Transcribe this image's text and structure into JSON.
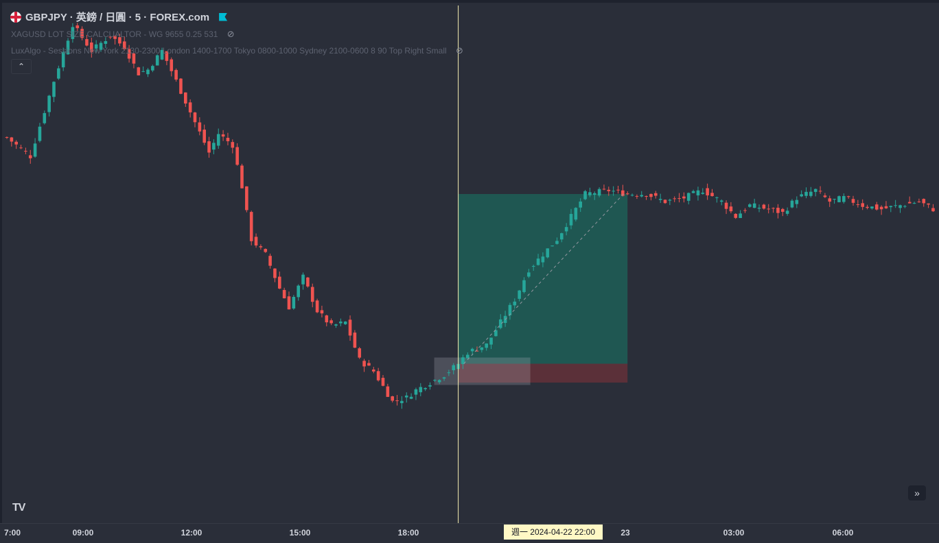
{
  "header": {
    "symbol_line": "GBPJPY · 英鎊 / 日圓 · 5 · FOREX.com",
    "indicator_1": "XAGUSD LOT SIZE CALCUALTOR - WG 9655 0.25 531",
    "indicator_2": "LuxAlgo - Sessions New York 2130-2300 London 1400-1700 Tokyo 0800-1000 Sydney 2100-0600 8 90 Top Right Small"
  },
  "icons": {
    "flag": "uk-flag-icon",
    "bookmark": "bookmark-icon",
    "eye_hidden": "eye-off-icon",
    "collapse": "chevron-up-icon",
    "logo": "tradingview-logo",
    "scroll": "double-chevron-right-icon"
  },
  "glyphs": {
    "eye": "⊘",
    "collapse": "⌃",
    "logo": "TV",
    "scroll": "»"
  },
  "colors": {
    "background": "#2a2e39",
    "up": "#26a69a",
    "down": "#ef5350",
    "target_zone": "#1f5752",
    "stop_zone": "#5b3039",
    "crosshair": "#f7f0b2"
  },
  "crosshair": {
    "label": "週一 2024-04-22   22:00"
  },
  "chart_data": {
    "type": "candlestick",
    "interval": "5",
    "x_ticks": [
      "7:00",
      "09:00",
      "12:00",
      "15:00",
      "18:00",
      "23",
      "03:00",
      "06:00"
    ],
    "price_path": [
      [
        0,
        45
      ],
      [
        5,
        40
      ],
      [
        10,
        60
      ],
      [
        14,
        75
      ],
      [
        18,
        68
      ],
      [
        22,
        72
      ],
      [
        25,
        69
      ],
      [
        28,
        62
      ],
      [
        30,
        63
      ],
      [
        33,
        68
      ],
      [
        36,
        60
      ],
      [
        40,
        49
      ],
      [
        43,
        41
      ],
      [
        45,
        46
      ],
      [
        48,
        43
      ],
      [
        50,
        32
      ],
      [
        52,
        18
      ],
      [
        55,
        14
      ],
      [
        58,
        5
      ],
      [
        60,
        0
      ],
      [
        63,
        8
      ],
      [
        66,
        -1
      ],
      [
        69,
        -5
      ],
      [
        72,
        -4
      ],
      [
        75,
        -14
      ],
      [
        78,
        -17
      ],
      [
        80,
        -21
      ],
      [
        82,
        -25
      ],
      [
        85,
        -24
      ],
      [
        87,
        -22
      ],
      [
        90,
        -20
      ],
      [
        93,
        -18
      ],
      [
        96,
        -15
      ],
      [
        98,
        -12
      ],
      [
        102,
        -10
      ],
      [
        105,
        -4
      ],
      [
        108,
        2
      ],
      [
        111,
        10
      ],
      [
        114,
        14
      ],
      [
        117,
        18
      ],
      [
        120,
        24
      ],
      [
        123,
        30
      ],
      [
        128,
        31
      ],
      [
        132,
        30
      ],
      [
        136,
        30
      ],
      [
        140,
        28
      ],
      [
        144,
        29
      ],
      [
        148,
        31
      ],
      [
        152,
        28
      ],
      [
        155,
        24
      ],
      [
        158,
        27
      ],
      [
        162,
        26
      ],
      [
        165,
        25
      ],
      [
        168,
        29
      ],
      [
        172,
        31
      ],
      [
        175,
        28
      ],
      [
        178,
        29
      ],
      [
        182,
        27
      ],
      [
        186,
        26
      ],
      [
        190,
        27
      ],
      [
        194,
        28
      ],
      [
        197,
        26
      ]
    ],
    "value_unit": "relative move (scale unknown; price axis not shown)",
    "position_tool": {
      "entry_index": 96,
      "exit_index": 132,
      "entry_value": -15,
      "target_value": 30,
      "stop_value": -20
    }
  }
}
